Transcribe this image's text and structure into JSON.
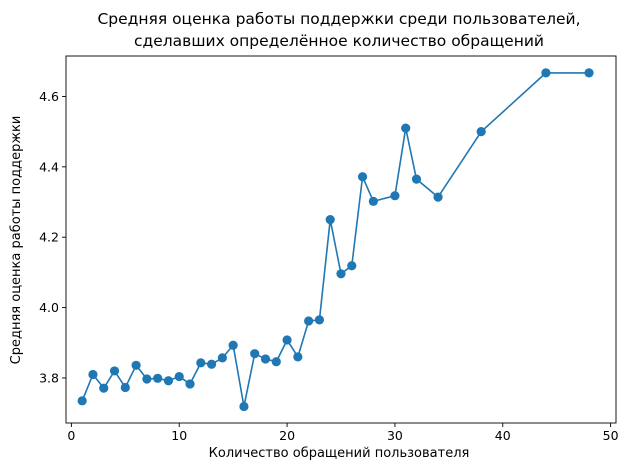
{
  "chart_data": {
    "type": "line",
    "title_lines": [
      "Средняя оценка работы поддержки среди пользователей,",
      "сделавших определённое количество обращений"
    ],
    "xlabel": "Количество обращений пользователя",
    "ylabel": "Средняя оценка работы поддержки",
    "xlim": [
      -0.5,
      50.5
    ],
    "ylim": [
      3.672,
      4.715
    ],
    "x_ticks": [
      0,
      10,
      20,
      30,
      40,
      50
    ],
    "y_ticks": [
      3.8,
      4.0,
      4.2,
      4.4,
      4.6
    ],
    "x_tick_labels": [
      "0",
      "10",
      "20",
      "30",
      "40",
      "50"
    ],
    "y_tick_labels": [
      "3.8",
      "4.0",
      "4.2",
      "4.4",
      "4.6"
    ],
    "grid": false,
    "line_color": "#1f77b4",
    "marker": "circle",
    "series": [
      {
        "x": [
          1,
          2,
          3,
          4,
          5,
          6,
          7,
          8,
          9,
          10,
          11,
          12,
          13,
          14,
          15,
          16,
          17,
          18,
          19,
          20,
          21,
          22,
          23,
          24,
          25,
          26,
          27,
          28,
          30,
          31,
          32,
          34,
          38,
          44,
          48
        ],
        "y": [
          3.735,
          3.81,
          3.771,
          3.82,
          3.773,
          3.836,
          3.797,
          3.799,
          3.792,
          3.804,
          3.783,
          3.843,
          3.839,
          3.857,
          3.893,
          3.719,
          3.869,
          3.854,
          3.846,
          3.908,
          3.86,
          3.962,
          3.965,
          4.25,
          4.096,
          4.119,
          4.372,
          4.302,
          4.318,
          4.51,
          4.365,
          4.314,
          4.5,
          4.667,
          4.667
        ]
      }
    ]
  }
}
